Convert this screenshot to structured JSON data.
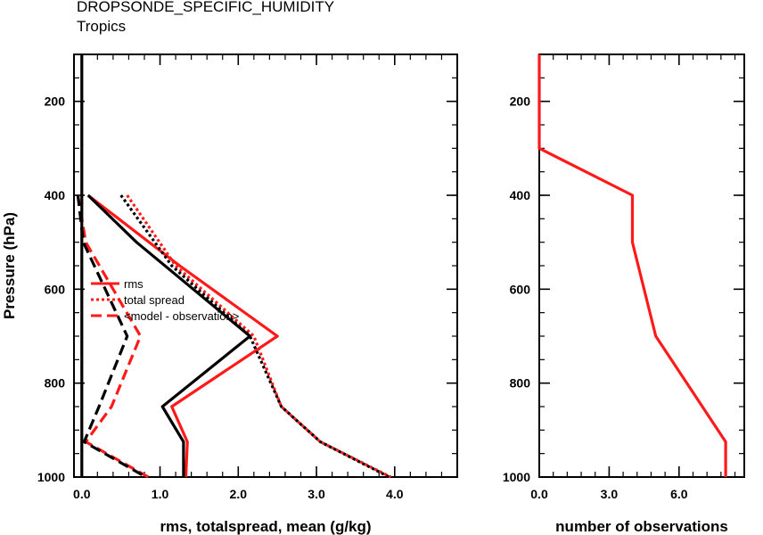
{
  "title": "DROPSONDE_SPECIFIC_HUMIDITY",
  "subtitle": "Tropics",
  "colors": {
    "experiment": "#ff1a1a",
    "control": "#000000"
  },
  "chart_data": [
    {
      "type": "line",
      "xlabel": "rms, totalspread, mean (g/kg)",
      "ylabel": "Pressure (hPa)",
      "xlim": [
        -0.1,
        4.8
      ],
      "ylim": [
        1000,
        100
      ],
      "yscale": "linear-inverted",
      "xticks": [
        "0.0",
        "1.0",
        "2.0",
        "3.0",
        "4.0"
      ],
      "yticks": [
        "200",
        "400",
        "600",
        "800",
        "1000"
      ],
      "legend": {
        "placement": "center-left",
        "entries": [
          {
            "label": "rms",
            "style": "solid"
          },
          {
            "label": "total spread",
            "style": "dotted"
          },
          {
            "label": "<model - observation>",
            "style": "dashed"
          }
        ]
      },
      "series": [
        {
          "color": "red",
          "style": "solid",
          "x": [
            0.08,
            1.25,
            2.5,
            1.15,
            1.35,
            1.33
          ],
          "y": [
            400,
            550,
            700,
            850,
            925,
            1000
          ]
        },
        {
          "color": "black",
          "style": "solid",
          "x": [
            0.08,
            0.7,
            2.15,
            1.03,
            1.3,
            1.3
          ],
          "y": [
            400,
            500,
            700,
            850,
            925,
            1000
          ]
        },
        {
          "color": "red",
          "style": "dotted",
          "x": [
            0.58,
            1.2,
            2.2,
            2.55,
            3.05,
            3.95
          ],
          "y": [
            400,
            550,
            700,
            850,
            925,
            1000
          ]
        },
        {
          "color": "black",
          "style": "dotted",
          "x": [
            0.5,
            1.15,
            2.15,
            2.55,
            3.05,
            3.93
          ],
          "y": [
            400,
            550,
            700,
            850,
            925,
            1000
          ]
        },
        {
          "color": "red",
          "style": "dashed",
          "x": [
            -0.05,
            0.05,
            0.75,
            0.38,
            0.05,
            0.85
          ],
          "y": [
            400,
            500,
            700,
            850,
            925,
            1000
          ]
        },
        {
          "color": "black",
          "style": "dashed",
          "x": [
            -0.05,
            0.02,
            0.58,
            0.22,
            0.03,
            0.82
          ],
          "y": [
            400,
            500,
            700,
            850,
            925,
            1000
          ]
        },
        {
          "color": "black",
          "style": "solid",
          "x": [
            0.0,
            0.0
          ],
          "y": [
            100,
            1000
          ]
        }
      ]
    },
    {
      "type": "line",
      "xlabel": "number of observations",
      "xlim": [
        0,
        8.8
      ],
      "ylim": [
        1000,
        100
      ],
      "xticks": [
        "0.0",
        "3.0",
        "6.0"
      ],
      "yticks": [
        "200",
        "400",
        "600",
        "800",
        "1000"
      ],
      "series": [
        {
          "color": "red",
          "style": "solid",
          "x": [
            0,
            0,
            4,
            4,
            5,
            8,
            8
          ],
          "y": [
            100,
            300,
            400,
            500,
            700,
            925,
            1000
          ]
        }
      ]
    }
  ]
}
